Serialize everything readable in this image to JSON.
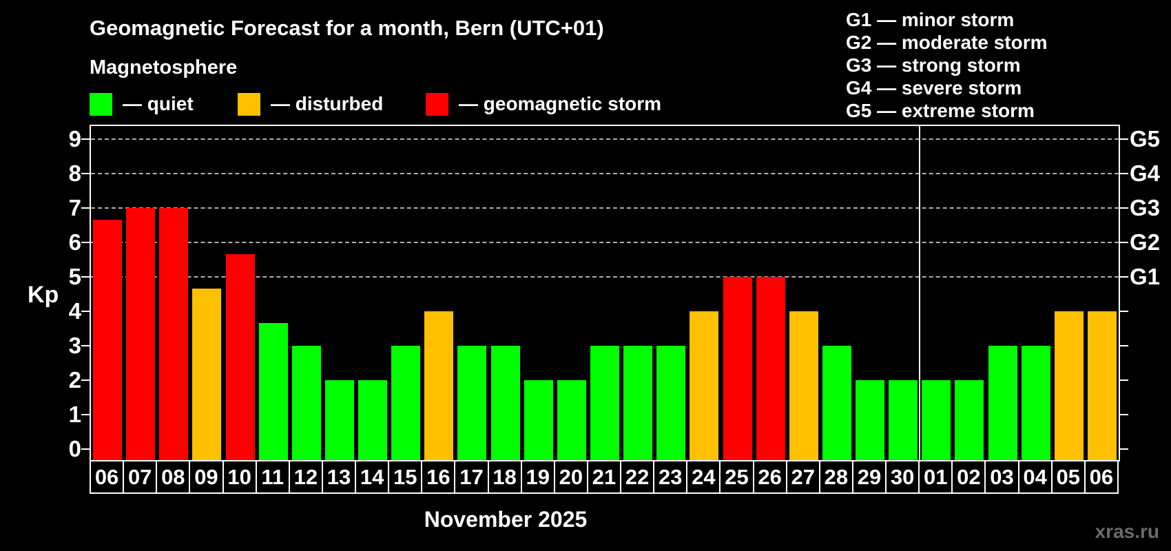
{
  "title": "Geomagnetic Forecast for a month, Bern (UTC+01)",
  "subtitle": "Magnetosphere",
  "legend": {
    "items": [
      {
        "key": "quiet",
        "label": "— quiet",
        "color": "#00ff00"
      },
      {
        "key": "disturbed",
        "label": "— disturbed",
        "color": "#ffc000"
      },
      {
        "key": "storm",
        "label": "— geomagnetic storm",
        "color": "#ff0000"
      }
    ]
  },
  "g_scale_legend": [
    "G1 — minor storm",
    "G2 — moderate storm",
    "G3 — strong storm",
    "G4 — severe storm",
    "G5 — extreme storm"
  ],
  "month_label": "November 2025",
  "watermark": "xras.ru",
  "chart_data": {
    "type": "bar",
    "title": "Geomagnetic Forecast for a month, Bern (UTC+01)",
    "ylabel": "Kp",
    "ylim": [
      0,
      9
    ],
    "y_ticks": [
      0,
      1,
      2,
      3,
      4,
      5,
      6,
      7,
      8,
      9
    ],
    "gridlines_kp": [
      5,
      6,
      7,
      8,
      9
    ],
    "grid": "dashed horizontal at storm levels only",
    "legend_position": "top",
    "right_axis": [
      {
        "label": "G1",
        "kp": 5
      },
      {
        "label": "G2",
        "kp": 6
      },
      {
        "label": "G3",
        "kp": 7
      },
      {
        "label": "G4",
        "kp": 8
      },
      {
        "label": "G5",
        "kp": 9
      }
    ],
    "categories": [
      "06",
      "07",
      "08",
      "09",
      "10",
      "11",
      "12",
      "13",
      "14",
      "15",
      "16",
      "17",
      "18",
      "19",
      "20",
      "21",
      "22",
      "23",
      "24",
      "25",
      "26",
      "27",
      "28",
      "29",
      "30",
      "01",
      "02",
      "03",
      "04",
      "05",
      "06"
    ],
    "values": [
      6.67,
      7,
      7,
      4.67,
      5.67,
      3.67,
      3,
      2,
      2,
      3,
      4,
      3,
      3,
      2,
      2,
      3,
      3,
      3,
      4,
      5,
      5,
      4,
      3,
      2,
      2,
      2,
      2,
      3,
      3,
      4,
      4
    ],
    "statuses": [
      "storm",
      "storm",
      "storm",
      "disturbed",
      "storm",
      "quiet",
      "quiet",
      "quiet",
      "quiet",
      "quiet",
      "disturbed",
      "quiet",
      "quiet",
      "quiet",
      "quiet",
      "quiet",
      "quiet",
      "quiet",
      "disturbed",
      "storm",
      "storm",
      "disturbed",
      "quiet",
      "quiet",
      "quiet",
      "quiet",
      "quiet",
      "quiet",
      "quiet",
      "disturbed",
      "disturbed"
    ],
    "status_colors": {
      "quiet": "#00ff00",
      "disturbed": "#ffc000",
      "storm": "#ff0000"
    },
    "month_boundary_after_index": 24
  }
}
